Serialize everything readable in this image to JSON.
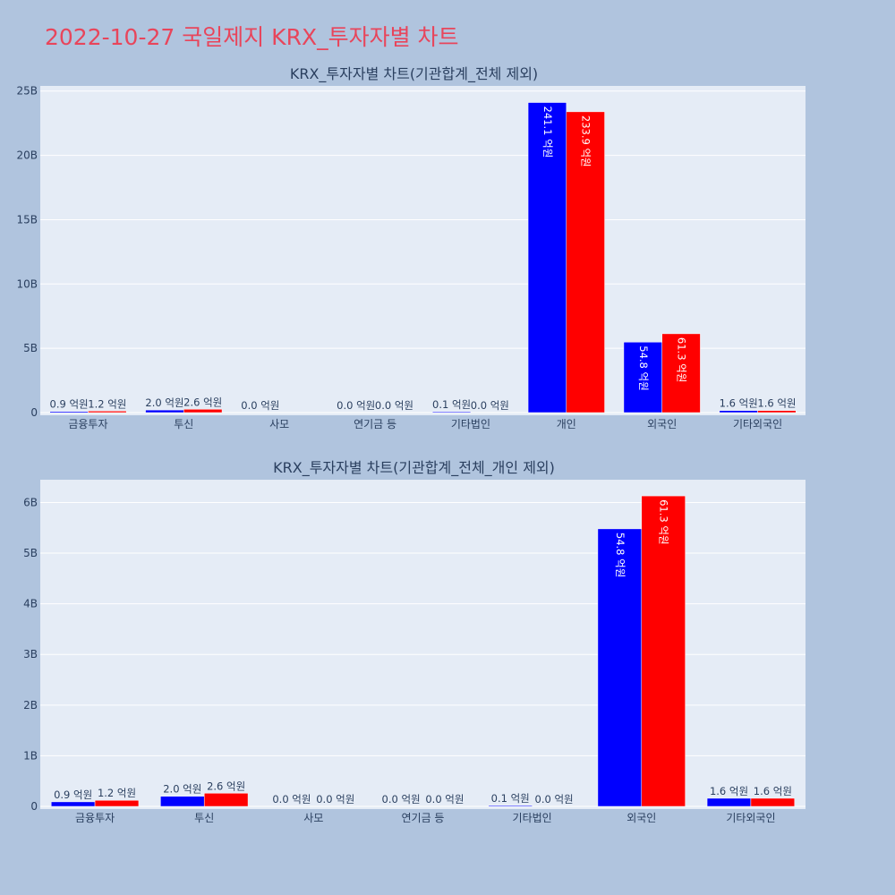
{
  "page_title": "2022-10-27 국일제지 KRX_투자자별 차트",
  "colors": {
    "background": "#b0c4de",
    "plot_bg": "#e5ecf6",
    "title": "#e8455b",
    "series_a": "#0000ff",
    "series_b": "#ff0000"
  },
  "chart_data": [
    {
      "type": "bar",
      "title": "KRX_투자자별 차트(기관합계_전체 제외)",
      "categories": [
        "금융투자",
        "투신",
        "사모",
        "연기금 등",
        "기타법인",
        "개인",
        "외국인",
        "기타외국인"
      ],
      "series": [
        {
          "color": "#0000ff",
          "values": [
            0.09,
            0.2,
            0.0,
            0.0,
            0.01,
            24.11,
            5.48,
            0.16
          ],
          "labels": [
            "0.9 억원",
            "2.0 억원",
            "0.0 억원",
            "0.0 억원",
            "0.1 억원",
            "241.1 억원",
            "54.8 억원",
            "1.6 억원"
          ]
        },
        {
          "color": "#ff0000",
          "values": [
            0.12,
            0.26,
            null,
            0.0,
            0.0,
            23.39,
            6.13,
            0.16
          ],
          "labels": [
            "1.2 억원",
            "2.6 억원",
            "",
            "0.0 억원",
            "0.0 억원",
            "233.9 억원",
            "61.3 억원",
            "1.6 억원"
          ]
        }
      ],
      "yticks": [
        0,
        5,
        10,
        15,
        20,
        25
      ],
      "ytick_labels": [
        "0",
        "5B",
        "10B",
        "15B",
        "20B",
        "25B"
      ],
      "ylim": [
        0,
        25.4
      ],
      "grid": true,
      "barmode": "group"
    },
    {
      "type": "bar",
      "title": "KRX_투자자별 차트(기관합계_전체_개인 제외)",
      "categories": [
        "금융투자",
        "투신",
        "사모",
        "연기금 등",
        "기타법인",
        "외국인",
        "기타외국인"
      ],
      "series": [
        {
          "color": "#0000ff",
          "values": [
            0.09,
            0.2,
            0.0,
            0.0,
            0.01,
            5.48,
            0.16
          ],
          "labels": [
            "0.9 억원",
            "2.0 억원",
            "0.0 억원",
            "0.0 억원",
            "0.1 억원",
            "54.8 억원",
            "1.6 억원"
          ]
        },
        {
          "color": "#ff0000",
          "values": [
            0.12,
            0.26,
            0.0,
            0.0,
            0.0,
            6.13,
            0.16
          ],
          "labels": [
            "1.2 억원",
            "2.6 억원",
            "0.0 억원",
            "0.0 억원",
            "0.0 억원",
            "61.3 억원",
            "1.6 억원"
          ]
        }
      ],
      "yticks": [
        0,
        1,
        2,
        3,
        4,
        5,
        6
      ],
      "ytick_labels": [
        "0",
        "1B",
        "2B",
        "3B",
        "4B",
        "5B",
        "6B"
      ],
      "ylim": [
        0,
        6.45
      ],
      "grid": true,
      "barmode": "group"
    }
  ]
}
